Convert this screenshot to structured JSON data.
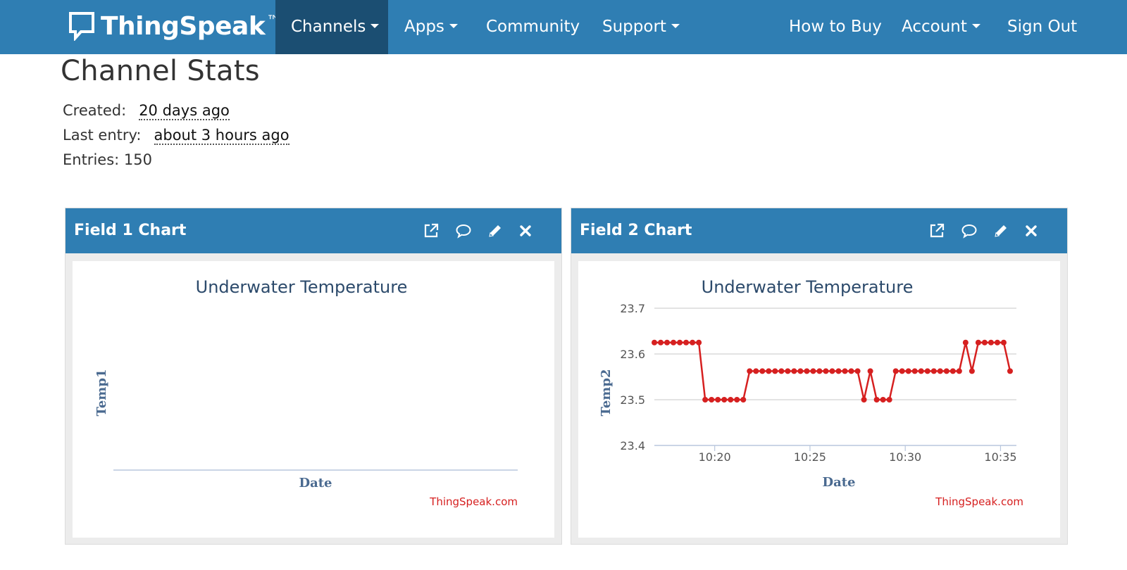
{
  "nav": {
    "brand": "ThingSpeak",
    "brand_tm": "™",
    "items": [
      {
        "label": "Channels",
        "dropdown": true,
        "active": true
      },
      {
        "label": "Apps",
        "dropdown": true
      },
      {
        "label": "Community",
        "dropdown": false
      },
      {
        "label": "Support",
        "dropdown": true
      },
      {
        "label": "How to Buy",
        "dropdown": false
      },
      {
        "label": "Account",
        "dropdown": true
      },
      {
        "label": "Sign Out",
        "dropdown": false
      }
    ]
  },
  "stats": {
    "title": "Channel Stats",
    "created_label": "Created:",
    "created_value": "20 days ago",
    "last_entry_label": "Last entry:",
    "last_entry_value": "about 3 hours ago",
    "entries_label": "Entries:",
    "entries_value": "150"
  },
  "panels": [
    {
      "title": "Field 1 Chart",
      "tools": [
        "external-link-icon",
        "comment-icon",
        "pencil-icon",
        "close-icon"
      ]
    },
    {
      "title": "Field 2 Chart",
      "tools": [
        "external-link-icon",
        "comment-icon",
        "pencil-icon",
        "close-icon"
      ]
    }
  ],
  "colors": {
    "navbar": "#2f7eb3",
    "nav_active": "#1b4e72",
    "series": "#d62020",
    "credit": "#d62020"
  },
  "chart_data": [
    {
      "type": "line",
      "title": "Underwater Temperature",
      "xlabel": "Date",
      "ylabel": "Temp1",
      "credit": "ThingSpeak.com",
      "series": [
        {
          "values": []
        }
      ]
    },
    {
      "type": "line",
      "title": "Underwater Temperature",
      "xlabel": "Date",
      "ylabel": "Temp2",
      "credit": "ThingSpeak.com",
      "ylim": [
        23.4,
        23.7
      ],
      "yticks": [
        "23.4",
        "23.5",
        "23.6",
        "23.7"
      ],
      "xticks": [
        "10:20",
        "10:25",
        "10:30",
        "10:35"
      ],
      "xlim": [
        "10:16:50",
        "10:35:50"
      ],
      "grid": true,
      "x": [
        "10:16:50",
        "10:17:10",
        "10:17:30",
        "10:17:50",
        "10:18:10",
        "10:18:30",
        "10:18:50",
        "10:19:10",
        "10:19:30",
        "10:19:50",
        "10:20:10",
        "10:20:30",
        "10:20:50",
        "10:21:10",
        "10:21:30",
        "10:21:50",
        "10:22:10",
        "10:22:30",
        "10:22:50",
        "10:23:10",
        "10:23:30",
        "10:23:50",
        "10:24:10",
        "10:24:30",
        "10:24:50",
        "10:25:10",
        "10:25:30",
        "10:25:50",
        "10:26:10",
        "10:26:30",
        "10:26:50",
        "10:27:10",
        "10:27:30",
        "10:27:50",
        "10:28:10",
        "10:28:30",
        "10:28:50",
        "10:29:10",
        "10:29:30",
        "10:29:50",
        "10:30:10",
        "10:30:30",
        "10:30:50",
        "10:31:10",
        "10:31:30",
        "10:31:50",
        "10:32:10",
        "10:32:30",
        "10:32:50",
        "10:33:10",
        "10:33:30",
        "10:33:50",
        "10:34:10",
        "10:34:30",
        "10:34:50",
        "10:35:10",
        "10:35:30"
      ],
      "series": [
        {
          "values": [
            23.625,
            23.625,
            23.625,
            23.625,
            23.625,
            23.625,
            23.625,
            23.625,
            23.5,
            23.5,
            23.5,
            23.5,
            23.5,
            23.5,
            23.5,
            23.5625,
            23.5625,
            23.5625,
            23.5625,
            23.5625,
            23.5625,
            23.5625,
            23.5625,
            23.5625,
            23.5625,
            23.5625,
            23.5625,
            23.5625,
            23.5625,
            23.5625,
            23.5625,
            23.5625,
            23.5625,
            23.5,
            23.5625,
            23.5,
            23.5,
            23.5,
            23.5625,
            23.5625,
            23.5625,
            23.5625,
            23.5625,
            23.5625,
            23.5625,
            23.5625,
            23.5625,
            23.5625,
            23.5625,
            23.625,
            23.5625,
            23.625,
            23.625,
            23.625,
            23.625,
            23.625,
            23.5625
          ]
        }
      ]
    }
  ]
}
